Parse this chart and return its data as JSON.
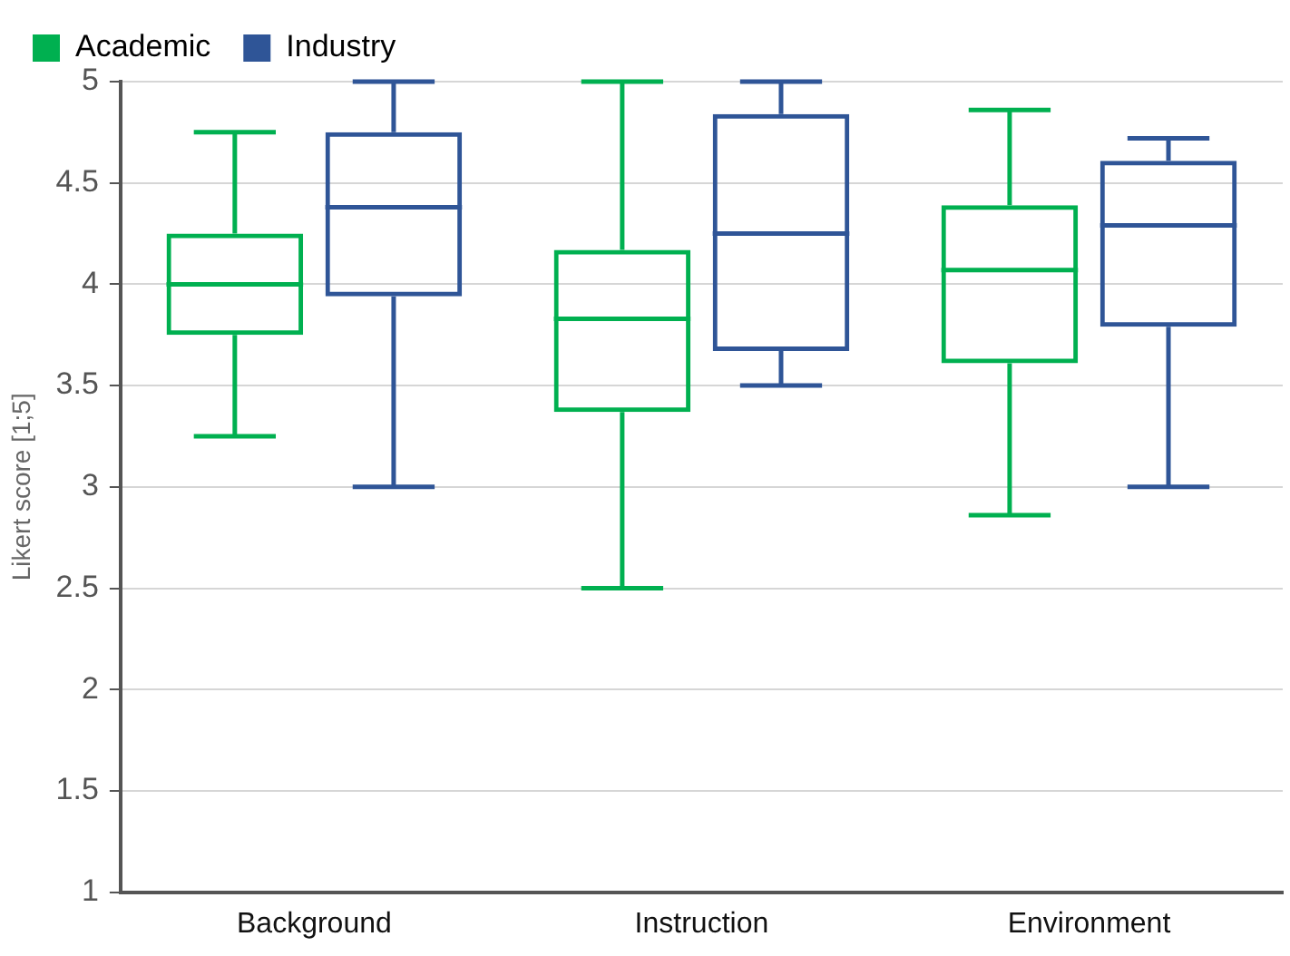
{
  "chart_data": {
    "type": "box",
    "ylabel": "Likert score [1;5]",
    "categories": [
      "Background",
      "Instruction",
      "Environment"
    ],
    "ylim": [
      1,
      5
    ],
    "yticks": [
      1,
      1.5,
      2,
      2.5,
      3,
      3.5,
      4,
      4.5,
      5
    ],
    "grid": "y",
    "legend": "top left",
    "series": [
      {
        "name": "Academic",
        "color": "#00b050",
        "boxes": [
          {
            "low": 3.25,
            "q1": 3.75,
            "median": 4,
            "q3": 4.25,
            "high": 4.75
          },
          {
            "low": 2.5,
            "q1": 3.37,
            "median": 3.83,
            "q3": 4.17,
            "high": 5
          },
          {
            "low": 2.86,
            "q1": 3.61,
            "median": 4.07,
            "q3": 4.39,
            "high": 4.86
          }
        ]
      },
      {
        "name": "Industry",
        "color": "#2f5597",
        "boxes": [
          {
            "low": 3,
            "q1": 3.94,
            "median": 4.38,
            "q3": 4.75,
            "high": 5
          },
          {
            "low": 3.5,
            "q1": 3.67,
            "median": 4.25,
            "q3": 4.84,
            "high": 5
          },
          {
            "low": 3,
            "q1": 3.79,
            "median": 4.29,
            "q3": 4.61,
            "high": 4.72
          }
        ]
      }
    ]
  }
}
